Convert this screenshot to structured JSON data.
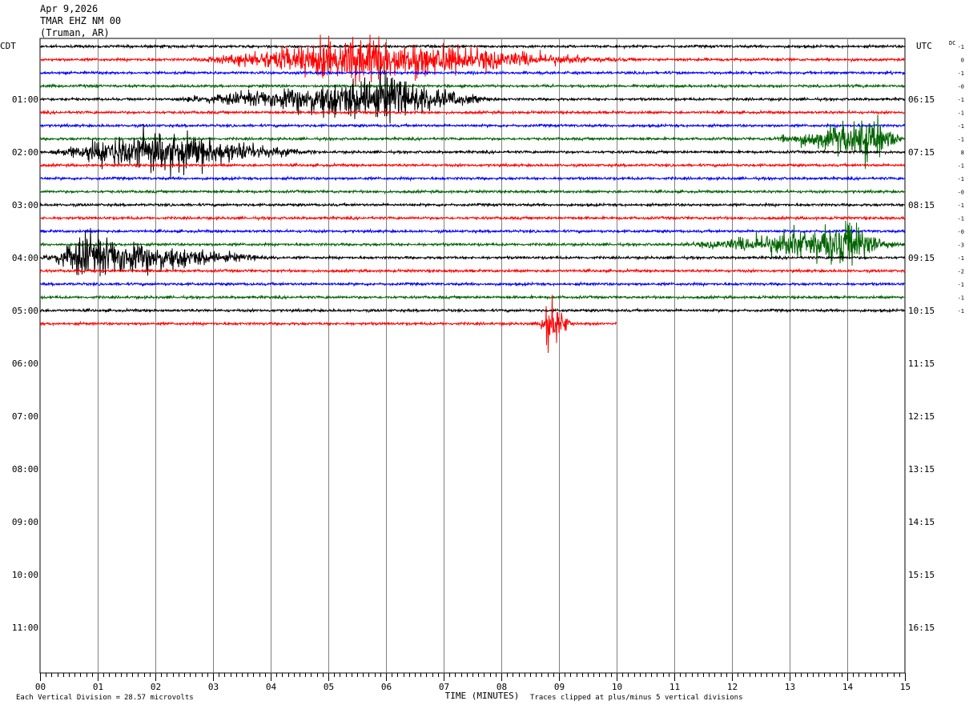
{
  "header": {
    "date": "Apr 9,2026",
    "station": "TMAR EHZ NM 00",
    "location": "(Truman, AR)"
  },
  "chart_data": {
    "type": "line",
    "title": "Apr 9,2026 TMAR EHZ NM 00 (Truman, AR)",
    "left_axis_label": "CDT",
    "right_axis_label": "UTC",
    "dc_label": "DC",
    "xlabel": "TIME (MINUTES)",
    "x_ticks": [
      "00",
      "01",
      "02",
      "03",
      "04",
      "05",
      "06",
      "07",
      "08",
      "09",
      "10",
      "11",
      "12",
      "13",
      "14",
      "15"
    ],
    "x_range": [
      0,
      15
    ],
    "left_hour_labels": [
      "01:00",
      "02:00",
      "03:00",
      "04:00",
      "05:00",
      "06:00",
      "07:00",
      "08:00",
      "09:00",
      "10:00",
      "11:00"
    ],
    "right_hour_labels": [
      "06:15",
      "07:15",
      "08:15",
      "09:15",
      "10:15",
      "11:15",
      "12:15",
      "13:15",
      "14:15",
      "15:15",
      "16:15"
    ],
    "trace_colors": [
      "#000000",
      "#ff0000",
      "#0000ff",
      "#006400"
    ],
    "trace_count": 22,
    "last_trace_end_minute": 10,
    "dc_offsets": [
      "-1",
      "0",
      "-1",
      "-0",
      "-1",
      "-1",
      "-1",
      "-1",
      "8",
      "-1",
      "-1",
      "-0",
      "-1",
      "-1",
      "-0",
      "-3",
      "-1",
      "-2",
      "-1",
      "-1",
      "-1"
    ],
    "events": [
      {
        "trace": 1,
        "start_min": 2.5,
        "end_min": 10.5,
        "peak_min": 5.3,
        "color": "red"
      },
      {
        "trace": 4,
        "start_min": 2.0,
        "end_min": 8.0,
        "peak_min": 6.0,
        "color": "black"
      },
      {
        "trace": 7,
        "start_min": 12.5,
        "end_min": 15.0,
        "peak_min": 14.5,
        "color": "green"
      },
      {
        "trace": 8,
        "start_min": 0.0,
        "end_min": 5.0,
        "peak_min": 1.8,
        "color": "black"
      },
      {
        "trace": 15,
        "start_min": 11.0,
        "end_min": 15.0,
        "peak_min": 14.0,
        "color": "green"
      },
      {
        "trace": 16,
        "start_min": 0.0,
        "end_min": 4.2,
        "peak_min": 0.8,
        "color": "black"
      },
      {
        "trace": 21,
        "start_min": 8.6,
        "end_min": 9.3,
        "peak_min": 8.85,
        "color": "red"
      }
    ],
    "footer_left_label": "Each Vertical Division =",
    "footer_left_value": "28.57 microvolts",
    "footer_right": "Traces clipped at plus/minus 5 vertical divisions"
  }
}
